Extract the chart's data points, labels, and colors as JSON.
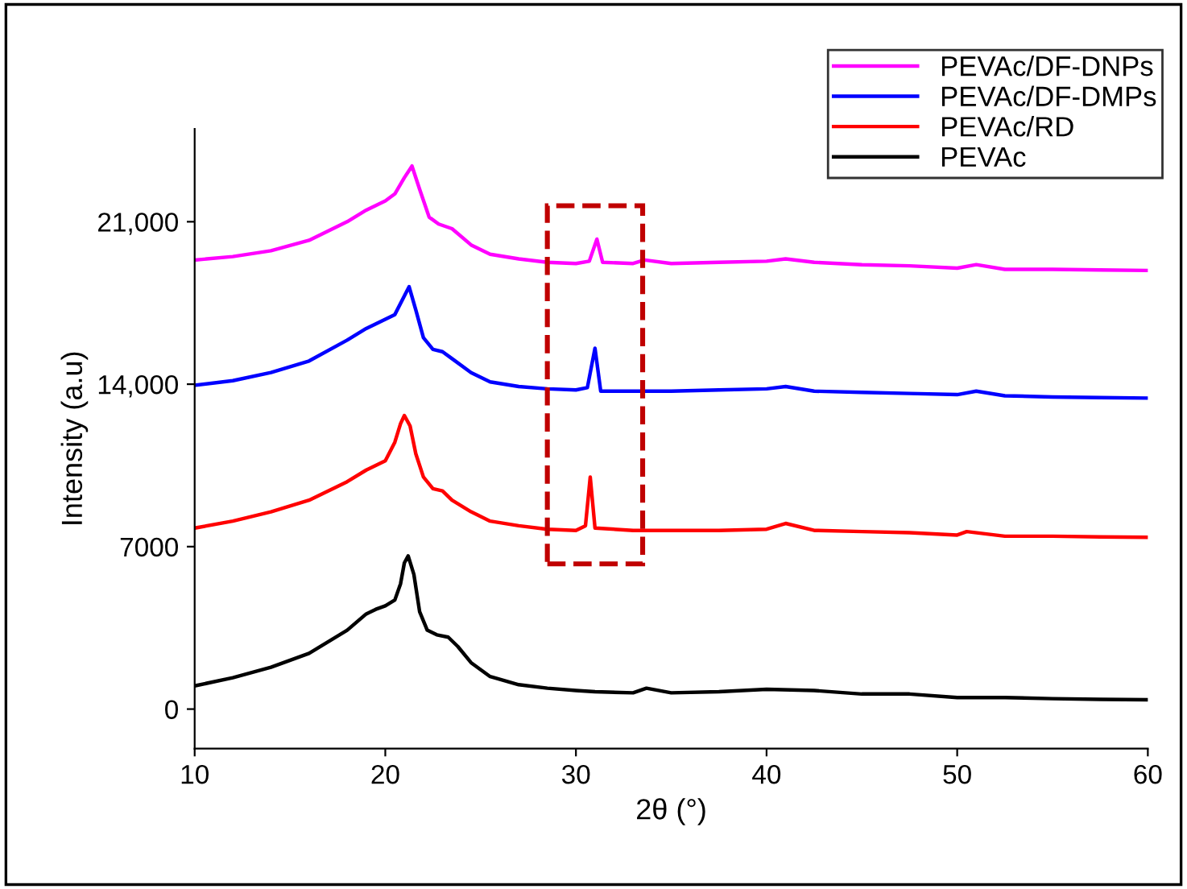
{
  "chart_data": {
    "type": "line",
    "xlabel": "2θ (°)",
    "ylabel": "Intensity (a.u)",
    "xlim": [
      10,
      60
    ],
    "xticks": [
      10,
      20,
      30,
      40,
      50,
      60
    ],
    "ylim": [
      -1700,
      25000
    ],
    "yticks": [
      0,
      7000,
      {
        "value": 14000,
        "label": "14,000"
      },
      {
        "value": 21000,
        "label": "21,000"
      }
    ],
    "grid": false,
    "legend": "top right",
    "marker": "none",
    "line_style": "solid",
    "series": [
      {
        "name": "PEVAc/DF-DNPs",
        "color": "#ff00ff",
        "x": [
          10,
          12,
          14,
          16,
          18,
          19,
          19.5,
          20,
          20.5,
          21,
          21.4,
          21.8,
          22.3,
          22.8,
          23.5,
          24.5,
          25.5,
          27,
          28.5,
          30,
          30.7,
          31.1,
          31.4,
          33,
          33.6,
          35,
          37.5,
          40,
          41,
          42.5,
          45,
          47.5,
          50,
          51,
          52.5,
          55,
          57.5,
          60
        ],
        "values": [
          19350,
          19500,
          19750,
          20200,
          21000,
          21500,
          21700,
          21900,
          22200,
          22900,
          23400,
          22400,
          21200,
          20900,
          20700,
          20000,
          19600,
          19400,
          19250,
          19200,
          19300,
          20250,
          19250,
          19200,
          19350,
          19200,
          19250,
          19300,
          19400,
          19250,
          19150,
          19100,
          19000,
          19150,
          18950,
          18950,
          18920,
          18900
        ]
      },
      {
        "name": "PEVAc/DF-DMPs",
        "color": "#0000ff",
        "x": [
          10,
          12,
          14,
          16,
          18,
          19,
          19.5,
          20,
          20.5,
          21,
          21.25,
          21.6,
          22,
          22.5,
          23,
          23.5,
          24.5,
          25.5,
          27,
          28.5,
          30,
          30.6,
          31,
          31.3,
          33,
          35,
          37.5,
          40,
          41,
          42.5,
          45,
          47.5,
          50,
          51,
          52.5,
          55,
          57.5,
          60
        ],
        "values": [
          13950,
          14150,
          14500,
          15000,
          15900,
          16400,
          16600,
          16800,
          17000,
          17800,
          18200,
          17200,
          16000,
          15500,
          15400,
          15100,
          14500,
          14100,
          13900,
          13800,
          13750,
          13850,
          15550,
          13700,
          13700,
          13700,
          13750,
          13800,
          13900,
          13700,
          13650,
          13600,
          13550,
          13700,
          13500,
          13450,
          13420,
          13400
        ]
      },
      {
        "name": "PEVAc/RD",
        "color": "#ff0000",
        "x": [
          10,
          12,
          14,
          16,
          18,
          19,
          19.5,
          20,
          20.5,
          20.8,
          21,
          21.3,
          21.6,
          22,
          22.5,
          23,
          23.5,
          24.5,
          25.5,
          27,
          28.5,
          30,
          30.5,
          30.75,
          31,
          33,
          35,
          37.5,
          40,
          41,
          42.5,
          45,
          47.5,
          50,
          50.5,
          52.5,
          55,
          57.5,
          60
        ],
        "values": [
          7800,
          8100,
          8500,
          9000,
          9800,
          10300,
          10500,
          10700,
          11500,
          12300,
          12650,
          12200,
          11000,
          10000,
          9500,
          9400,
          9000,
          8500,
          8100,
          7900,
          7750,
          7700,
          7900,
          10000,
          7800,
          7700,
          7700,
          7700,
          7750,
          8000,
          7700,
          7650,
          7600,
          7500,
          7650,
          7450,
          7450,
          7420,
          7400
        ]
      },
      {
        "name": "PEVAc",
        "color": "#000000",
        "x": [
          10,
          12,
          14,
          16,
          18,
          19,
          19.5,
          20,
          20.5,
          20.8,
          21,
          21.2,
          21.5,
          21.8,
          22.2,
          22.7,
          23.3,
          23.8,
          24.5,
          25.5,
          27,
          28.5,
          30,
          31,
          33,
          33.7,
          35,
          37.5,
          40,
          42.5,
          45,
          47.5,
          50,
          52.5,
          55,
          57.5,
          60
        ],
        "values": [
          1000,
          1350,
          1800,
          2400,
          3400,
          4100,
          4300,
          4450,
          4700,
          5400,
          6300,
          6600,
          5800,
          4200,
          3400,
          3200,
          3100,
          2700,
          2000,
          1400,
          1050,
          900,
          800,
          750,
          700,
          900,
          700,
          750,
          850,
          800,
          650,
          650,
          500,
          500,
          450,
          420,
          400
        ]
      }
    ]
  }
}
